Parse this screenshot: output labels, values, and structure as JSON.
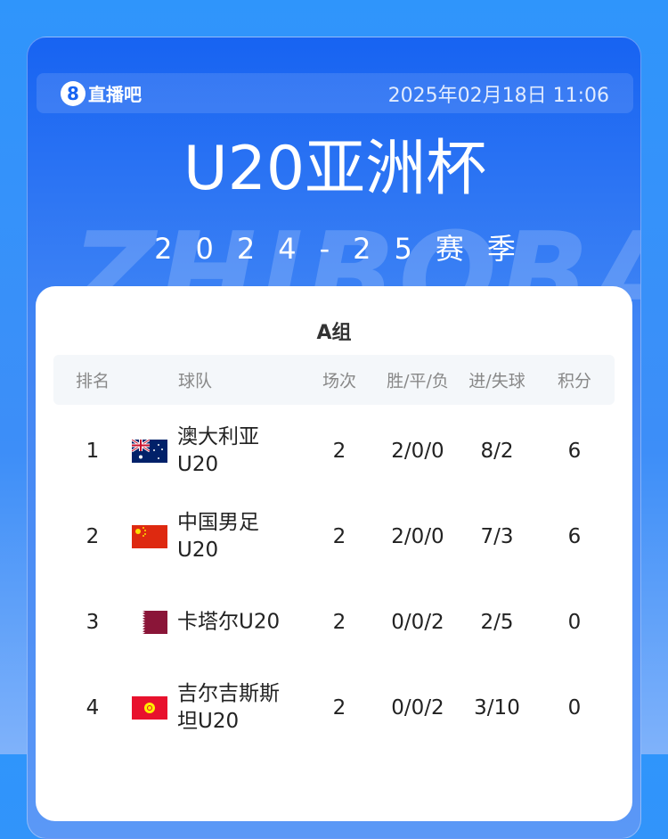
{
  "header": {
    "logo_text": "直播吧",
    "logo_mark": "8",
    "datetime": "2025年02月18日 11:06"
  },
  "title": "U20亚洲杯",
  "season": "2024-25赛季",
  "watermark": "ZHIBOBA",
  "group": "A组",
  "columns": [
    "排名",
    "球队",
    "场次",
    "胜/平/负",
    "进/失球",
    "积分"
  ],
  "rows": [
    {
      "rank": "1",
      "team": "澳大利亚U20",
      "flag": "australia-flag",
      "played": "2",
      "wdl": "2/0/0",
      "goals": "8/2",
      "points": "6"
    },
    {
      "rank": "2",
      "team": "中国男足U20",
      "flag": "china-flag",
      "played": "2",
      "wdl": "2/0/0",
      "goals": "7/3",
      "points": "6"
    },
    {
      "rank": "3",
      "team": "卡塔尔U20",
      "flag": "qatar-flag",
      "played": "2",
      "wdl": "0/0/2",
      "goals": "2/5",
      "points": "0"
    },
    {
      "rank": "4",
      "team": "吉尔吉斯斯坦U20",
      "flag": "kyrgyzstan-flag",
      "played": "2",
      "wdl": "0/0/2",
      "goals": "3/10",
      "points": "0"
    }
  ],
  "colors": {
    "card_top": "#1763f2",
    "card_bottom": "#5b98f6",
    "panel": "#ffffff"
  }
}
